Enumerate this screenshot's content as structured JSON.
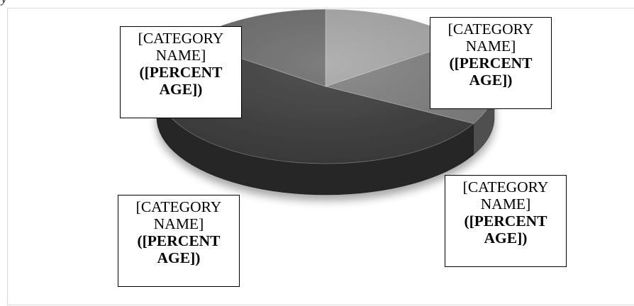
{
  "fragment_text": "y",
  "colors": {
    "slice_light": "#a6a6a6",
    "slice_mid": "#7f7f7f",
    "slice_darkest": "#3d3d3d",
    "slice_dark": "#6b6b6b",
    "frame": "#d9d9d9",
    "label_border": "#000000"
  },
  "chart_data": {
    "type": "pie",
    "style": "3d",
    "values": [
      15,
      18,
      52,
      15
    ],
    "slices": [
      {
        "category": "[CATEGORY NAME]",
        "percentage": "([PERCENT AGE])",
        "color": "#a6a6a6",
        "label_position": "top-right"
      },
      {
        "category": "[CATEGORY NAME]",
        "percentage": "([PERCENT AGE])",
        "color": "#7f7f7f",
        "label_position": "bottom-right"
      },
      {
        "category": "[CATEGORY NAME]",
        "percentage": "([PERCENT AGE])",
        "color": "#3d3d3d",
        "label_position": "bottom-left"
      },
      {
        "category": "[CATEGORY NAME]",
        "percentage": "([PERCENT AGE])",
        "color": "#6b6b6b",
        "label_position": "top-left"
      }
    ]
  }
}
